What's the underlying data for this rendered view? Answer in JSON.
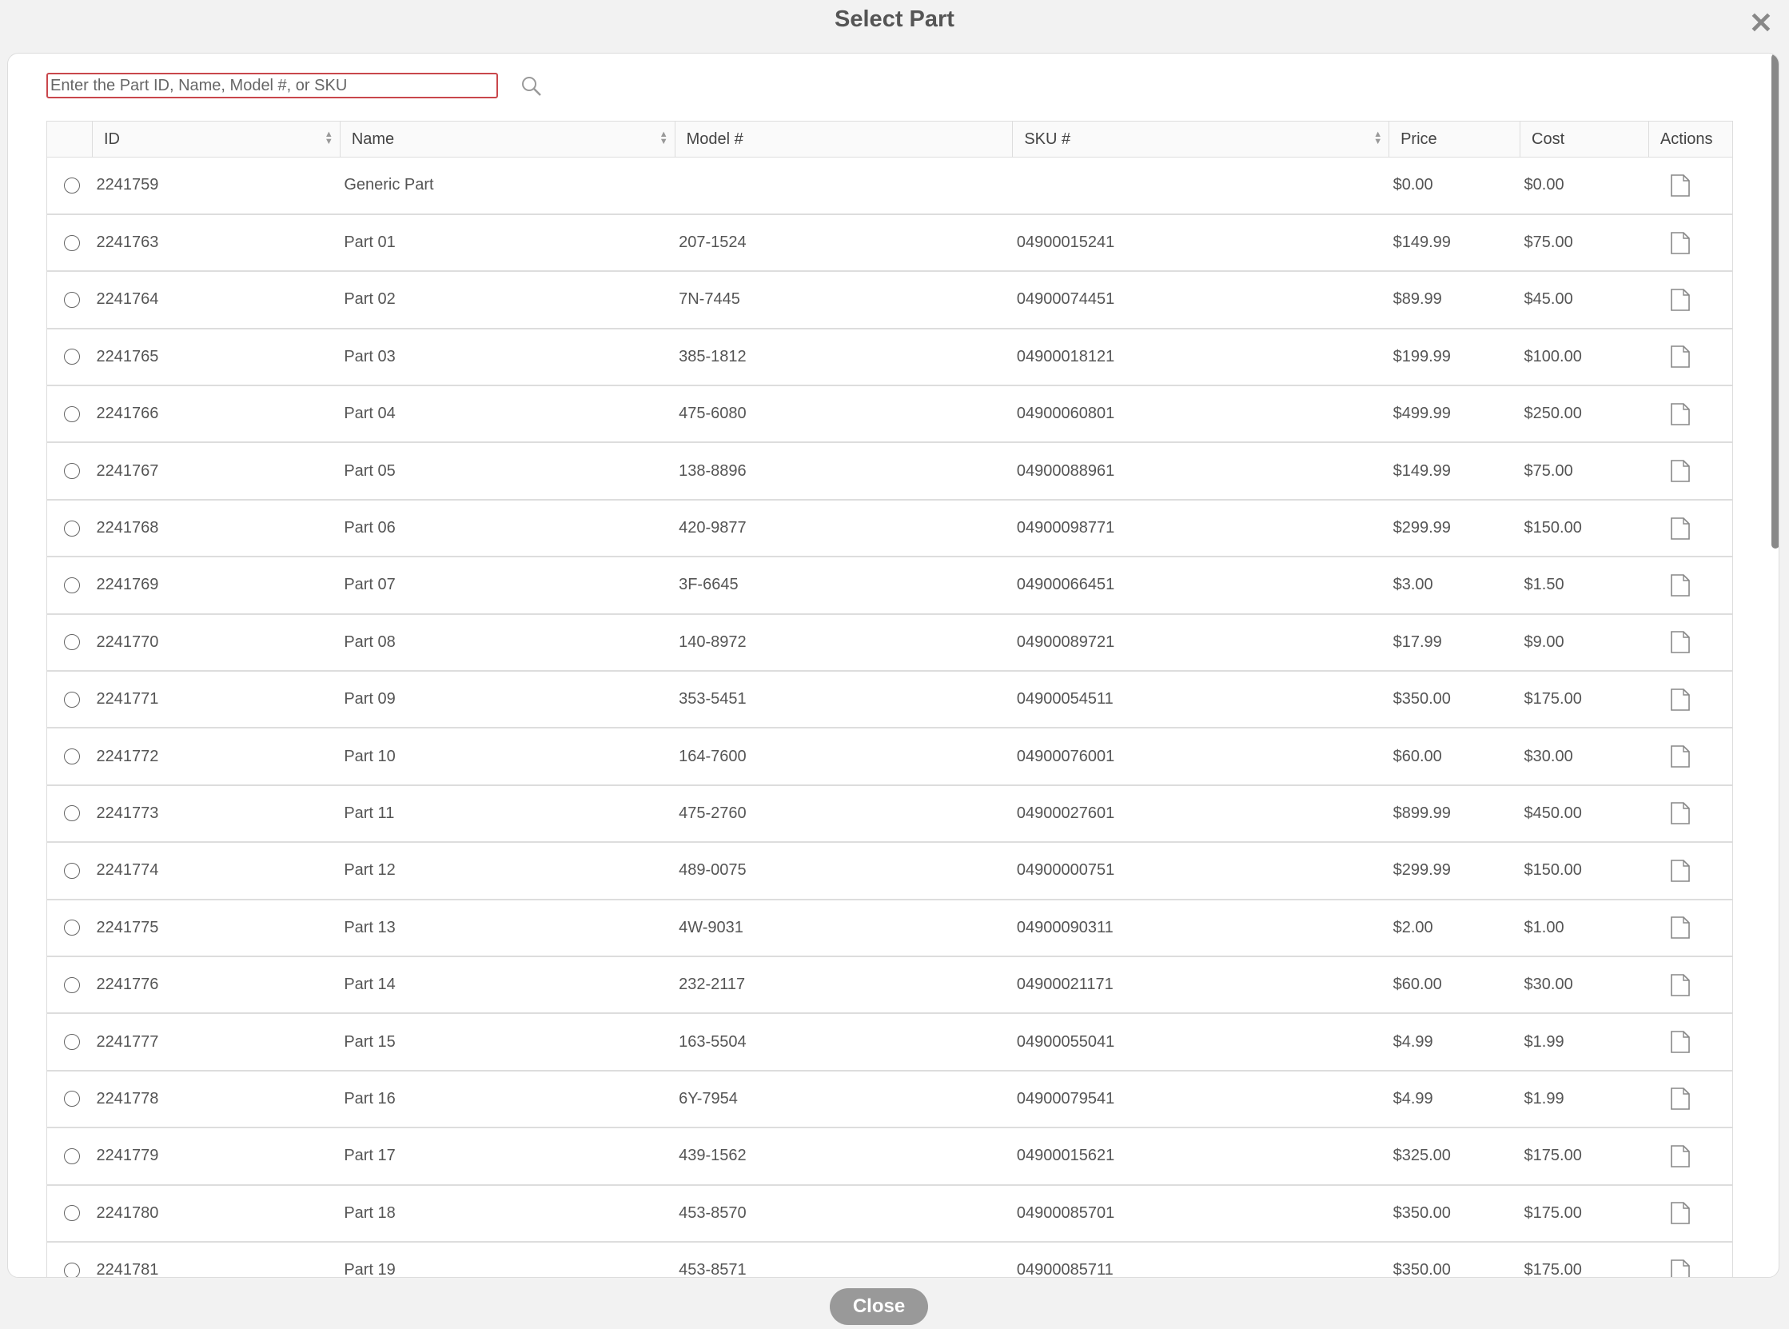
{
  "dialog": {
    "title": "Select Part",
    "close_label": "Close",
    "close_icon": "close-icon"
  },
  "search": {
    "placeholder": "Enter the Part ID, Name, Model #, or SKU",
    "value": "",
    "border_color": "#c9474c"
  },
  "table": {
    "columns": [
      {
        "label": ""
      },
      {
        "label": "ID",
        "sortable": true
      },
      {
        "label": "Name",
        "sortable": true
      },
      {
        "label": "Model #"
      },
      {
        "label": "SKU #",
        "sortable": true
      },
      {
        "label": "Price"
      },
      {
        "label": "Cost"
      },
      {
        "label": "Actions"
      }
    ],
    "rows": [
      [
        "2241759",
        "Generic Part",
        "",
        "",
        "$0.00",
        "$0.00"
      ],
      [
        "2241763",
        "Part 01",
        "207-1524",
        "04900015241",
        "$149.99",
        "$75.00"
      ],
      [
        "2241764",
        "Part 02",
        "7N-7445",
        "04900074451",
        "$89.99",
        "$45.00"
      ],
      [
        "2241765",
        "Part 03",
        "385-1812",
        "04900018121",
        "$199.99",
        "$100.00"
      ],
      [
        "2241766",
        "Part 04",
        "475-6080",
        "04900060801",
        "$499.99",
        "$250.00"
      ],
      [
        "2241767",
        "Part 05",
        "138-8896",
        "04900088961",
        "$149.99",
        "$75.00"
      ],
      [
        "2241768",
        "Part 06",
        "420-9877",
        "04900098771",
        "$299.99",
        "$150.00"
      ],
      [
        "2241769",
        "Part 07",
        "3F-6645",
        "04900066451",
        "$3.00",
        "$1.50"
      ],
      [
        "2241770",
        "Part 08",
        "140-8972",
        "04900089721",
        "$17.99",
        "$9.00"
      ],
      [
        "2241771",
        "Part 09",
        "353-5451",
        "04900054511",
        "$350.00",
        "$175.00"
      ],
      [
        "2241772",
        "Part 10",
        "164-7600",
        "04900076001",
        "$60.00",
        "$30.00"
      ],
      [
        "2241773",
        "Part 11",
        "475-2760",
        "04900027601",
        "$899.99",
        "$450.00"
      ],
      [
        "2241774",
        "Part 12",
        "489-0075",
        "04900000751",
        "$299.99",
        "$150.00"
      ],
      [
        "2241775",
        "Part 13",
        "4W-9031",
        "04900090311",
        "$2.00",
        "$1.00"
      ],
      [
        "2241776",
        "Part 14",
        "232-2117",
        "04900021171",
        "$60.00",
        "$30.00"
      ],
      [
        "2241777",
        "Part 15",
        "163-5504",
        "04900055041",
        "$4.99",
        "$1.99"
      ],
      [
        "2241778",
        "Part 16",
        "6Y-7954",
        "04900079541",
        "$4.99",
        "$1.99"
      ],
      [
        "2241779",
        "Part 17",
        "439-1562",
        "04900015621",
        "$325.00",
        "$175.00"
      ],
      [
        "2241780",
        "Part 18",
        "453-8570",
        "04900085701",
        "$350.00",
        "$175.00"
      ],
      [
        "2241781",
        "Part 19",
        "453-8571",
        "04900085711",
        "$350.00",
        "$175.00"
      ]
    ]
  }
}
